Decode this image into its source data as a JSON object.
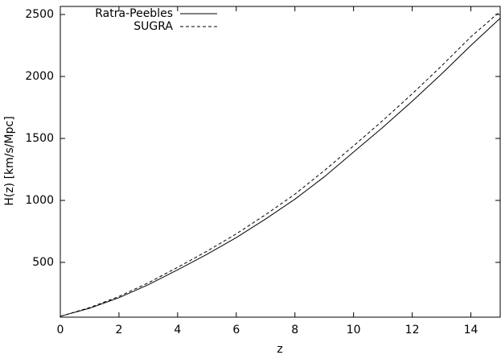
{
  "chart_data": {
    "type": "line",
    "xlabel": "z",
    "ylabel": "H(z) [km/s/Mpc]",
    "x": [
      0,
      1,
      2,
      3,
      4,
      5,
      6,
      7,
      8,
      9,
      10,
      11,
      12,
      13,
      14,
      15
    ],
    "series": [
      {
        "name": "Ratra-Peebles",
        "color": "#000000",
        "dash": "none",
        "values": [
          65,
          130,
          215,
          320,
          440,
          565,
          700,
          850,
          1010,
          1190,
          1390,
          1590,
          1800,
          2020,
          2250,
          2470
        ]
      },
      {
        "name": "SUGRA",
        "color": "#000000",
        "dash": "4,3",
        "values": [
          65,
          135,
          225,
          335,
          460,
          590,
          730,
          885,
          1050,
          1240,
          1440,
          1645,
          1860,
          2085,
          2320,
          2525
        ]
      }
    ],
    "xlim": [
      0,
      15
    ],
    "xticks": [
      0,
      2,
      4,
      6,
      8,
      10,
      12,
      14
    ],
    "ylim": [
      58,
      2565
    ],
    "yticks": [
      500,
      1000,
      1500,
      2000,
      2500
    ],
    "grid": false,
    "legend": "top-left"
  }
}
